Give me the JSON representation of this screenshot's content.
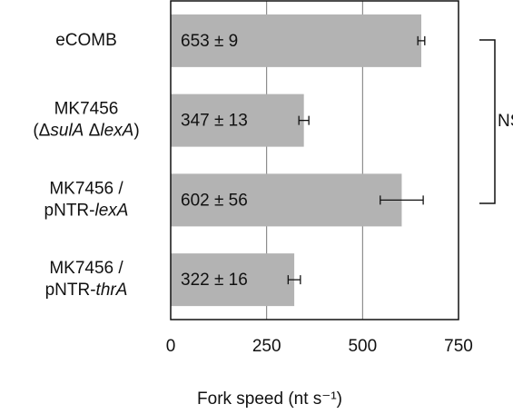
{
  "chart_data": {
    "type": "bar",
    "orientation": "horizontal",
    "categories": [
      [
        [
          "eCOMB"
        ]
      ],
      [
        [
          "MK7456"
        ],
        [
          "(Δ",
          {
            "text": "sulA",
            "style": "italic"
          },
          " Δ",
          {
            "text": "lexA",
            "style": "italic"
          },
          ")"
        ]
      ],
      [
        [
          "MK7456 /"
        ],
        [
          "pNTR-",
          {
            "text": "lexA",
            "style": "italic"
          }
        ]
      ],
      [
        [
          "MK7456 /"
        ],
        [
          "pNTR-",
          {
            "text": "thrA",
            "style": "italic"
          }
        ]
      ]
    ],
    "values": [
      653,
      347,
      602,
      322
    ],
    "errors": [
      9,
      13,
      56,
      16
    ],
    "value_labels": [
      "653 ± 9",
      "347 ± 13",
      "602 ± 56",
      "322 ± 16"
    ],
    "color": "#b3b3b3",
    "xlabel": "Fork speed (nt s⁻¹)",
    "xlim": [
      0,
      750
    ],
    "xticks": [
      0,
      250,
      500,
      750
    ],
    "grid": true,
    "annotation": "NS"
  }
}
